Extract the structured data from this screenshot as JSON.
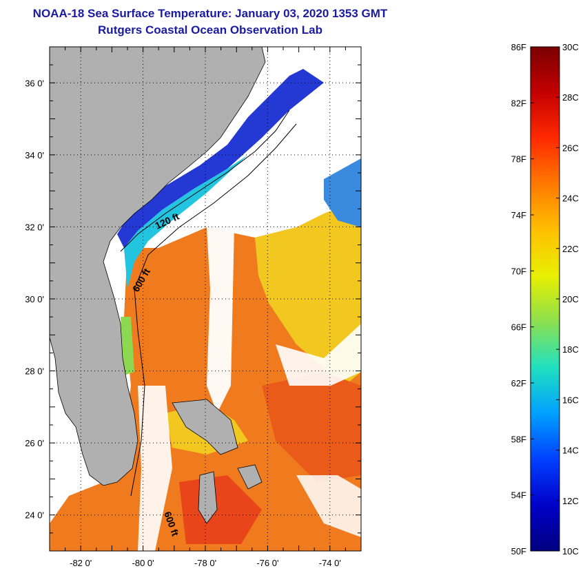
{
  "title": "NOAA-18 Sea Surface Temperature:  January 03, 2020 1353 GMT",
  "subtitle": "Rutgers Coastal Ocean Observation Lab",
  "map": {
    "lon_range": [
      -83.0,
      -73.0
    ],
    "lat_range": [
      23.0,
      37.0
    ],
    "lat_ticks": [
      {
        "value": 36,
        "label": "36 0'"
      },
      {
        "value": 34,
        "label": "34 0'"
      },
      {
        "value": 32,
        "label": "32 0'"
      },
      {
        "value": 30,
        "label": "30 0'"
      },
      {
        "value": 28,
        "label": "28 0'"
      },
      {
        "value": 26,
        "label": "26 0'"
      },
      {
        "value": 24,
        "label": "24 0'"
      }
    ],
    "lon_ticks": [
      {
        "value": -82,
        "label": "-82 0'"
      },
      {
        "value": -80,
        "label": "-80 0'"
      },
      {
        "value": -78,
        "label": "-78 0'"
      },
      {
        "value": -76,
        "label": "-76 0'"
      },
      {
        "value": -74,
        "label": "-74 0'"
      }
    ],
    "contour_labels": [
      "120 ft",
      "600 ft",
      "600 ft"
    ],
    "colors": {
      "land": "#b0b0b0",
      "cloud": "#ffffff",
      "warm": "#f07a1e",
      "yellow": "#f2d21e",
      "cold": "#2030d0"
    }
  },
  "colorbar": {
    "min_c": 10,
    "max_c": 30,
    "fahrenheit_labels": [
      "86F",
      "82F",
      "78F",
      "74F",
      "70F",
      "66F",
      "62F",
      "58F",
      "54F",
      "50F"
    ],
    "celsius_labels": [
      "30C",
      "28C",
      "26C",
      "24C",
      "22C",
      "20C",
      "18C",
      "16C",
      "14C",
      "12C",
      "10C"
    ],
    "gradient": [
      "#7a0000",
      "#c40000",
      "#ff2a00",
      "#ff7a00",
      "#ffc000",
      "#e8f000",
      "#8ce050",
      "#20e0c0",
      "#00a0ff",
      "#0040ff",
      "#0000c8",
      "#000080"
    ]
  }
}
